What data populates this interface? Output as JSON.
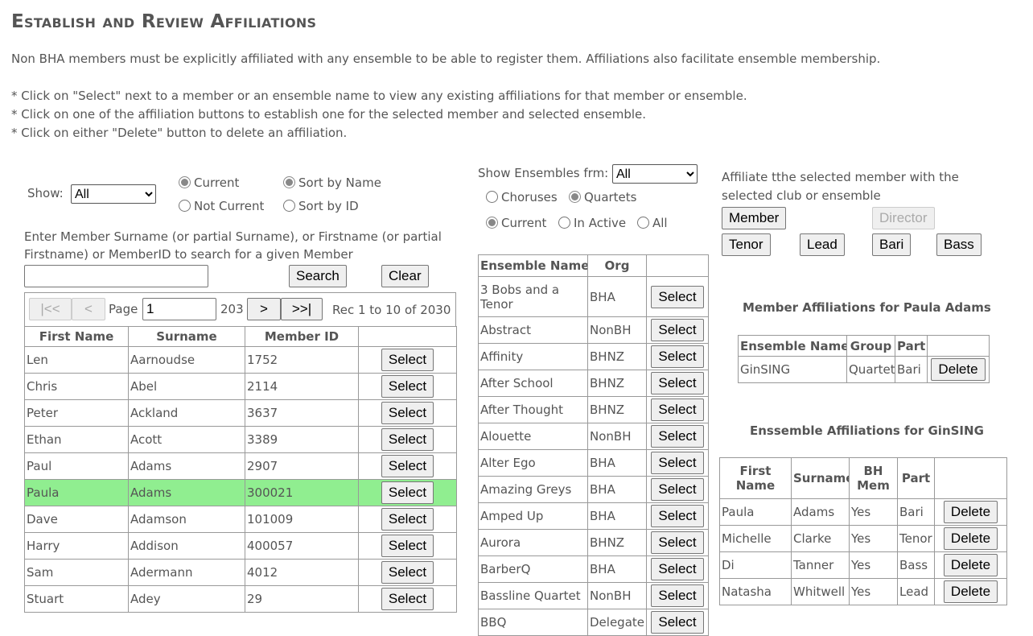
{
  "title": "Establish and Review Affiliations",
  "intro": "Non BHA members must be explicitly affiliated with any ensemble to be able to register them. Affiliations also facilitate ensemble membership.",
  "instructions": [
    "* Click on \"Select\" next to a member or an ensemble name to view any existing affiliations for that member or ensemble.",
    "* Click on one of the affiliation buttons to establish one for the selected member and selected ensemble.",
    "* Click on either \"Delete\" button to delete an affiliation."
  ],
  "members": {
    "show_label": "Show:",
    "show_value": "All",
    "radio_current": "Current",
    "radio_not_current": "Not Current",
    "radio_sort_name": "Sort by Name",
    "radio_sort_id": "Sort by ID",
    "search_hint": "Enter Member Surname (or partial Surname), or Firstname (or partial Firstname) or MemberID to search for a given Member",
    "search_value": "",
    "search_label": "Search",
    "clear_label": "Clear",
    "pager": {
      "first": "|<<",
      "prev": "<",
      "page_label": "Page",
      "page_value": "1",
      "total_pages": "203",
      "next": ">",
      "last": ">>|",
      "rec_text": "Rec 1 to 10 of 2030"
    },
    "headers": [
      "First Name",
      "Surname",
      "Member ID",
      ""
    ],
    "select_label": "Select",
    "rows": [
      [
        "Len",
        "Aarnoudse",
        "1752"
      ],
      [
        "Chris",
        "Abel",
        "2114"
      ],
      [
        "Peter",
        "Ackland",
        "3637"
      ],
      [
        "Ethan",
        "Acott",
        "3389"
      ],
      [
        "Paul",
        "Adams",
        "2907"
      ],
      [
        "Paula",
        "Adams",
        "300021"
      ],
      [
        "Dave",
        "Adamson",
        "101009"
      ],
      [
        "Harry",
        "Addison",
        "400057"
      ],
      [
        "Sam",
        "Adermann",
        "4012"
      ],
      [
        "Stuart",
        "Adey",
        "29"
      ]
    ],
    "selected_index": 5,
    "highlight_color": "#90ee90"
  },
  "ensembles": {
    "show_label": "Show Ensembles frm:",
    "show_value": "All",
    "radio_choruses": "Choruses",
    "radio_quartets": "Quartets",
    "radio_current": "Current",
    "radio_inactive": "In Active",
    "radio_all": "All",
    "headers": [
      "Ensemble Name",
      "Org",
      ""
    ],
    "select_label": "Select",
    "rows": [
      [
        "3 Bobs and a Tenor",
        "BHA"
      ],
      [
        "Abstract",
        "NonBH"
      ],
      [
        "Affinity",
        "BHNZ"
      ],
      [
        "After School",
        "BHNZ"
      ],
      [
        "After Thought",
        "BHNZ"
      ],
      [
        "Alouette",
        "NonBH"
      ],
      [
        "Alter Ego",
        "BHA"
      ],
      [
        "Amazing Greys",
        "BHA"
      ],
      [
        "Amped Up",
        "BHA"
      ],
      [
        "Aurora",
        "BHNZ"
      ],
      [
        "BarberQ",
        "BHA"
      ],
      [
        "Bassline Quartet",
        "NonBH"
      ],
      [
        "BBQ",
        "Delegate"
      ]
    ]
  },
  "affiliate": {
    "text": "Affiliate tthe selected member with the selected club or ensemble",
    "member": "Member",
    "director": "Director",
    "tenor": "Tenor",
    "lead": "Lead",
    "bari": "Bari",
    "bass": "Bass"
  },
  "member_affiliations": {
    "title": "Member Affiliations for Paula Adams",
    "headers": [
      "Ensemble Name",
      "Group",
      "Part",
      ""
    ],
    "rows": [
      [
        "GinSING",
        "Quartet",
        "Bari"
      ]
    ],
    "delete_label": "Delete"
  },
  "ensemble_affiliations": {
    "title": "Enssemble Affiliations for GinSING",
    "headers": [
      "First Name",
      "Surname",
      "BH Mem",
      "Part",
      ""
    ],
    "rows": [
      [
        "Paula",
        "Adams",
        "Yes",
        "Bari"
      ],
      [
        "Michelle",
        "Clarke",
        "Yes",
        "Tenor"
      ],
      [
        "Di",
        "Tanner",
        "Yes",
        "Bass"
      ],
      [
        "Natasha",
        "Whitwell",
        "Yes",
        "Lead"
      ]
    ],
    "delete_label": "Delete"
  }
}
